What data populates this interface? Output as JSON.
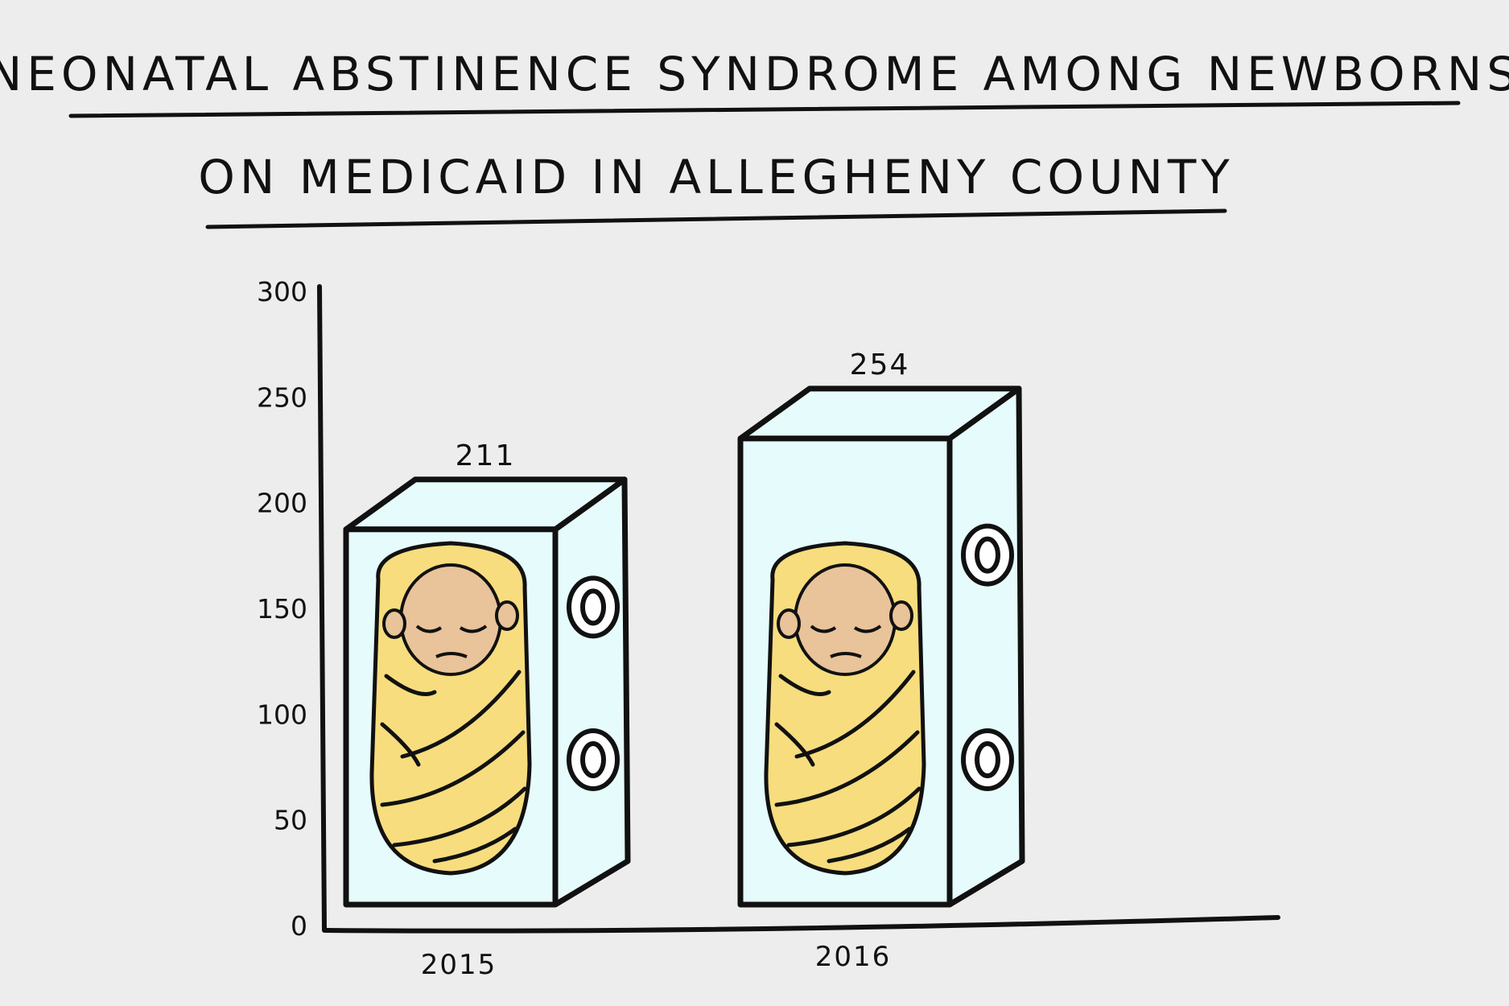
{
  "chart_data": {
    "type": "bar",
    "title": "NEONATAL ABSTINENCE SYNDROME AMONG NEWBORNS",
    "subtitle": "ON MEDICAID IN ALLEGHENY COUNTY",
    "categories": [
      "2015",
      "2016"
    ],
    "values": [
      211,
      254
    ],
    "value_labels": [
      "211",
      "254"
    ],
    "ylim": [
      0,
      300
    ],
    "yticks": [
      0,
      50,
      100,
      150,
      200,
      250,
      300
    ],
    "ytick_labels": [
      "0",
      "50",
      "100",
      "150",
      "200",
      "250",
      "300"
    ],
    "xlabel": "",
    "ylabel": "",
    "grid": false,
    "legend": "none"
  },
  "colors": {
    "background": "#ededed",
    "ink": "#111111",
    "incubator_fill": "#e6fbfc",
    "blanket": "#f7dd7e",
    "skin": "#e9c39a"
  },
  "icons": {
    "bar_mark": "incubator-with-swaddled-baby-icon"
  }
}
